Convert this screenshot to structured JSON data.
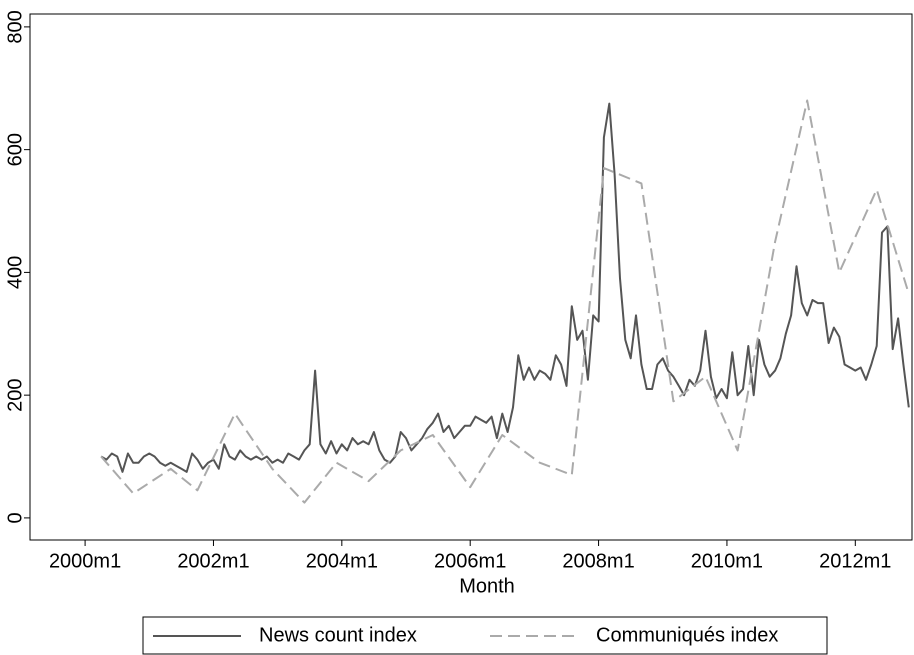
{
  "chart_data": {
    "type": "line",
    "x_label": "Month",
    "xlim": [
      469.7,
      634.6
    ],
    "xticks": [
      {
        "value": 480,
        "label": "2000m1"
      },
      {
        "value": 504,
        "label": "2002m1"
      },
      {
        "value": 528,
        "label": "2004m1"
      },
      {
        "value": 552,
        "label": "2006m1"
      },
      {
        "value": 576,
        "label": "2008m1"
      },
      {
        "value": 600,
        "label": "2010m1"
      },
      {
        "value": 624,
        "label": "2012m1"
      }
    ],
    "ylim": [
      -36,
      821
    ],
    "yticks": [
      0,
      200,
      400,
      600,
      800
    ],
    "grid": false,
    "legend": "bottom",
    "series": [
      {
        "name": "News count index",
        "color": "#555555",
        "line_style": "solid",
        "x": [
          483,
          484,
          485,
          486,
          487,
          488,
          489,
          490,
          491,
          492,
          493,
          494,
          495,
          496,
          497,
          498,
          499,
          500,
          501,
          502,
          503,
          504,
          505,
          506,
          507,
          508,
          509,
          510,
          511,
          512,
          513,
          514,
          515,
          516,
          517,
          518,
          519,
          520,
          521,
          522,
          523,
          524,
          525,
          526,
          527,
          528,
          529,
          530,
          531,
          532,
          533,
          534,
          535,
          536,
          537,
          538,
          539,
          540,
          541,
          542,
          543,
          544,
          545,
          546,
          547,
          548,
          549,
          550,
          551,
          552,
          553,
          554,
          555,
          556,
          557,
          558,
          559,
          560,
          561,
          562,
          563,
          564,
          565,
          566,
          567,
          568,
          569,
          570,
          571,
          572,
          573,
          574,
          575,
          576,
          577,
          578,
          579,
          580,
          581,
          582,
          583,
          584,
          585,
          586,
          587,
          588,
          589,
          590,
          591,
          592,
          593,
          594,
          595,
          596,
          597,
          598,
          599,
          600,
          601,
          602,
          603,
          604,
          605,
          606,
          607,
          608,
          609,
          610,
          611,
          612,
          613,
          614,
          615,
          616,
          617,
          618,
          619,
          620,
          621,
          622,
          623,
          624,
          625,
          626,
          627,
          628,
          629,
          630,
          631,
          632,
          633,
          634
        ],
        "values": [
          100,
          95,
          105,
          100,
          75,
          105,
          90,
          90,
          100,
          105,
          100,
          90,
          85,
          90,
          85,
          80,
          75,
          105,
          95,
          80,
          90,
          95,
          80,
          120,
          100,
          95,
          110,
          100,
          95,
          100,
          95,
          100,
          90,
          95,
          90,
          105,
          100,
          95,
          110,
          120,
          240,
          120,
          105,
          125,
          105,
          120,
          110,
          130,
          120,
          125,
          120,
          140,
          110,
          95,
          90,
          100,
          140,
          130,
          110,
          120,
          130,
          145,
          155,
          170,
          140,
          150,
          130,
          140,
          150,
          150,
          165,
          160,
          155,
          165,
          130,
          170,
          140,
          180,
          265,
          225,
          245,
          225,
          240,
          235,
          225,
          265,
          250,
          215,
          345,
          290,
          305,
          225,
          330,
          320,
          620,
          675,
          560,
          390,
          290,
          260,
          330,
          250,
          210,
          210,
          250,
          260,
          240,
          230,
          215,
          200,
          225,
          215,
          240,
          305,
          230,
          195,
          210,
          195,
          270,
          200,
          210,
          280,
          200,
          290,
          250,
          230,
          240,
          260,
          300,
          330,
          410,
          350,
          330,
          355,
          350,
          350,
          285,
          310,
          295,
          250,
          245,
          240,
          245,
          225,
          250,
          280,
          465,
          475,
          275,
          325,
          250,
          180
        ]
      },
      {
        "name": "Communiqués index",
        "color": "#aaaaaa",
        "line_style": "dashed",
        "x": [
          483,
          489,
          496,
          501,
          508,
          515,
          521,
          527,
          533,
          539,
          545,
          552,
          558,
          565,
          571,
          577,
          584,
          590,
          596,
          602,
          609,
          615,
          621,
          628,
          634
        ],
        "values": [
          100,
          40,
          80,
          45,
          170,
          80,
          25,
          90,
          60,
          110,
          135,
          50,
          135,
          90,
          70,
          570,
          545,
          190,
          230,
          110,
          450,
          680,
          400,
          535,
          365
        ]
      }
    ]
  }
}
